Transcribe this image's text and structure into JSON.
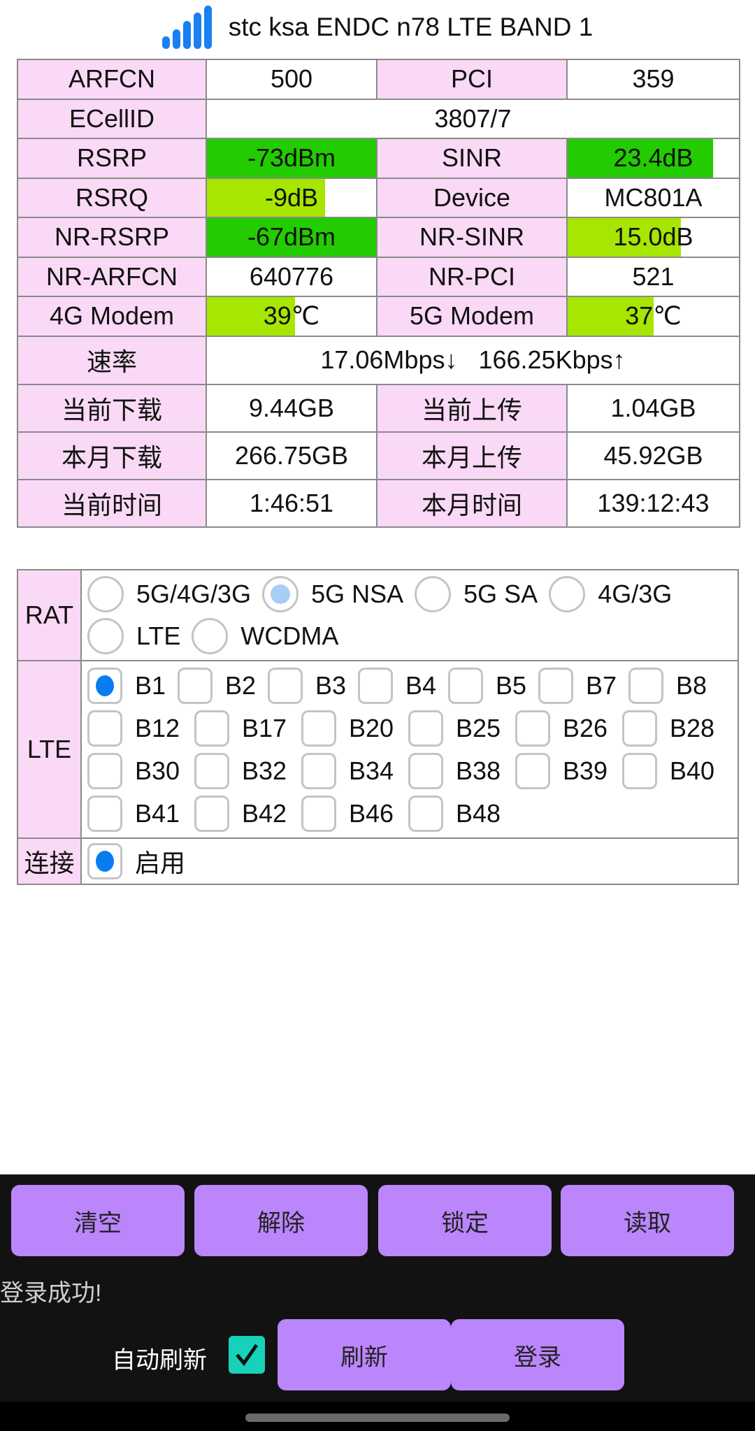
{
  "header": {
    "title": "stc ksa ENDC n78 LTE BAND 1",
    "icon": "signal-bars-icon",
    "color": "#1a7ff0"
  },
  "colors": {
    "label_bg": "#f9d9f5",
    "good": "#22cc00",
    "fair": "#a6e600",
    "button": "#bb86fc",
    "checkbox": "#18d1b9"
  },
  "info": {
    "arfcn_label": "ARFCN",
    "arfcn": "500",
    "pci_label": "PCI",
    "pci": "359",
    "ecellid_label": "ECellID",
    "ecellid": "3807/7",
    "rsrp_label": "RSRP",
    "rsrp": "-73dBm",
    "rsrp_level": 1.0,
    "sinr_label": "SINR",
    "sinr": "23.4dB",
    "sinr_level": 0.85,
    "rsrq_label": "RSRQ",
    "rsrq": "-9dB",
    "rsrq_level": 0.7,
    "device_label": "Device",
    "device": "MC801A",
    "nr_rsrp_label": "NR-RSRP",
    "nr_rsrp": "-67dBm",
    "nr_rsrp_level": 1.0,
    "nr_sinr_label": "NR-SINR",
    "nr_sinr": "15.0dB",
    "nr_sinr_level": 0.66,
    "nr_arfcn_label": "NR-ARFCN",
    "nr_arfcn": "640776",
    "nr_pci_label": "NR-PCI",
    "nr_pci": "521",
    "modem4g_label": "4G Modem",
    "modem4g": "39℃",
    "modem4g_level": 0.52,
    "modem5g_label": "5G Modem",
    "modem5g": "37℃",
    "modem5g_level": 0.5,
    "speed_label": "速率",
    "speed": "17.06Mbps↓   166.25Kbps↑",
    "cur_dl_label": "当前下载",
    "cur_dl": "9.44GB",
    "cur_ul_label": "当前上传",
    "cur_ul": "1.04GB",
    "mon_dl_label": "本月下载",
    "mon_dl": "266.75GB",
    "mon_ul_label": "本月上传",
    "mon_ul": "45.92GB",
    "cur_time_label": "当前时间",
    "cur_time": "1:46:51",
    "mon_time_label": "本月时间",
    "mon_time": "139:12:43"
  },
  "rat": {
    "label": "RAT",
    "options": [
      "5G/4G/3G",
      "5G NSA",
      "5G SA",
      "4G/3G",
      "LTE",
      "WCDMA"
    ],
    "selected": "5G NSA"
  },
  "lte": {
    "label": "LTE",
    "rows": [
      [
        "B1",
        "B2",
        "B3",
        "B4",
        "B5",
        "B7",
        "B8"
      ],
      [
        "B12",
        "B17",
        "B20",
        "B25",
        "B26",
        "B28"
      ],
      [
        "B30",
        "B32",
        "B34",
        "B38",
        "B39",
        "B40"
      ],
      [
        "B41",
        "B42",
        "B46",
        "B48"
      ]
    ],
    "checked": [
      "B1"
    ]
  },
  "connect": {
    "label": "连接",
    "option": "启用",
    "checked": true
  },
  "buttons": {
    "clear": "清空",
    "release": "解除",
    "lock": "锁定",
    "read": "读取",
    "refresh": "刷新",
    "login": "登录"
  },
  "status": "登录成功!",
  "auto_refresh": {
    "label": "自动刷新",
    "checked": true
  }
}
